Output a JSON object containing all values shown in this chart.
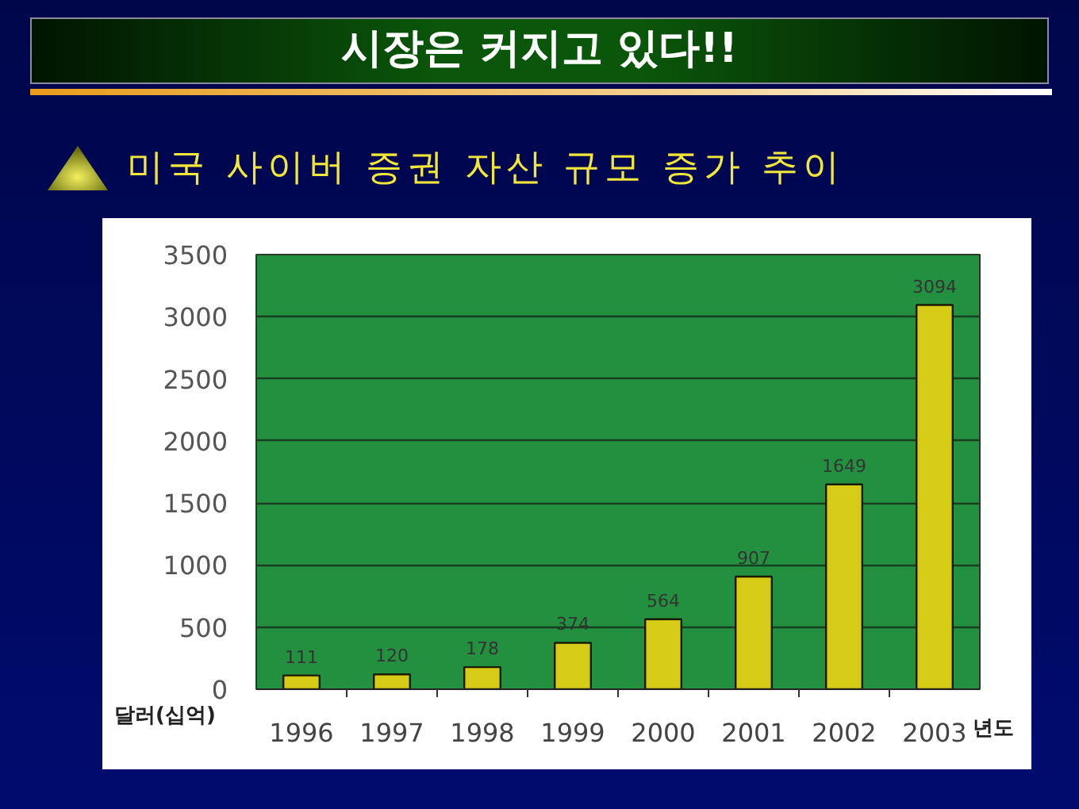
{
  "chart_data": {
    "type": "bar",
    "title": "시장은 커지고 있다!!",
    "subtitle": "미국 사이버 증권 자산 규모 증가 추이",
    "xlabel": "년도",
    "ylabel": "달러(십억)",
    "categories": [
      "1996",
      "1997",
      "1998",
      "1999",
      "2000",
      "2001",
      "2002",
      "2003"
    ],
    "values": [
      111,
      120,
      178,
      374,
      564,
      907,
      1649,
      3094
    ],
    "color": "#d6cb16",
    "ylim": [
      0,
      3500
    ],
    "yticks": [
      0,
      500,
      1000,
      1500,
      2000,
      2500,
      3000,
      3500
    ],
    "grid": "y",
    "data_labels": true
  }
}
